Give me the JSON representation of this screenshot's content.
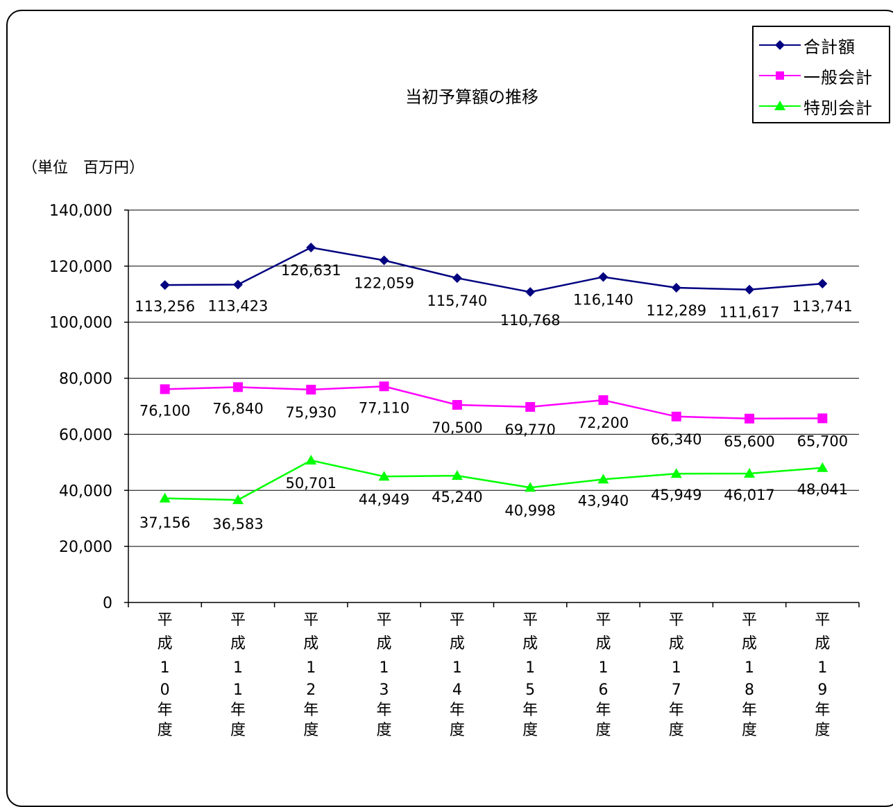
{
  "chart_data": {
    "type": "line",
    "title": "当初予算額の推移",
    "unit_label": "（単位　百万円）",
    "categories": [
      [
        "平",
        "成",
        "1",
        "0",
        "年",
        "度"
      ],
      [
        "平",
        "成",
        "1",
        "1",
        "年",
        "度"
      ],
      [
        "平",
        "成",
        "1",
        "2",
        "年",
        "度"
      ],
      [
        "平",
        "成",
        "1",
        "3",
        "年",
        "度"
      ],
      [
        "平",
        "成",
        "1",
        "4",
        "年",
        "度"
      ],
      [
        "平",
        "成",
        "1",
        "5",
        "年",
        "度"
      ],
      [
        "平",
        "成",
        "1",
        "6",
        "年",
        "度"
      ],
      [
        "平",
        "成",
        "1",
        "7",
        "年",
        "度"
      ],
      [
        "平",
        "成",
        "1",
        "8",
        "年",
        "度"
      ],
      [
        "平",
        "成",
        "1",
        "9",
        "年",
        "度"
      ]
    ],
    "ylim": [
      0,
      140000
    ],
    "yticks": [
      0,
      20000,
      40000,
      60000,
      80000,
      100000,
      120000,
      140000
    ],
    "ytick_labels": [
      "0",
      "20,000",
      "40,000",
      "60,000",
      "80,000",
      "100,000",
      "120,000",
      "140,000"
    ],
    "grid": true,
    "legend_position": "top-right",
    "series": [
      {
        "name": "合計額",
        "color": "#000080",
        "marker": "diamond",
        "values": [
          113256,
          113423,
          126631,
          122059,
          115740,
          110768,
          116140,
          112289,
          111617,
          113741
        ],
        "labels": [
          "113,256",
          "113,423",
          "126,631",
          "122,059",
          "115,740",
          "110,768",
          "116,140",
          "112,289",
          "111,617",
          "113,741"
        ]
      },
      {
        "name": "一般会計",
        "color": "#ff00ff",
        "marker": "square",
        "values": [
          76100,
          76840,
          75930,
          77110,
          70500,
          69770,
          72200,
          66340,
          65600,
          65700
        ],
        "labels": [
          "76,100",
          "76,840",
          "75,930",
          "77,110",
          "70,500",
          "69,770",
          "72,200",
          "66,340",
          "65,600",
          "65,700"
        ]
      },
      {
        "name": "特別会計",
        "color": "#00ff00",
        "marker": "triangle",
        "values": [
          37156,
          36583,
          50701,
          44949,
          45240,
          40998,
          43940,
          45949,
          46017,
          48041
        ],
        "labels": [
          "37,156",
          "36,583",
          "50,701",
          "44,949",
          "45,240",
          "40,998",
          "43,940",
          "45,949",
          "46,017",
          "48,041"
        ]
      }
    ]
  }
}
